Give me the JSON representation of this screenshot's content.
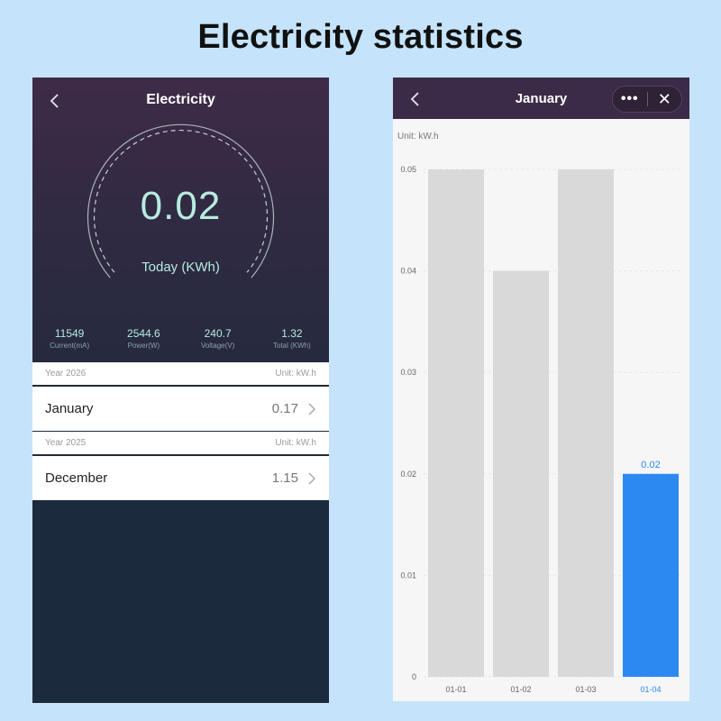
{
  "page_title": "Electricity statistics",
  "left": {
    "nav_title": "Electricity",
    "gauge_value": "0.02",
    "gauge_label": "Today (KWh)",
    "stats": [
      {
        "value": "11549",
        "label": "Current(mA)"
      },
      {
        "value": "2544.6",
        "label": "Power(W)"
      },
      {
        "value": "240.7",
        "label": "Voltage(V)"
      },
      {
        "value": "1.32",
        "label": "Total (KWh)"
      }
    ],
    "groups": [
      {
        "year": "Year 2026",
        "unit": "Unit: kW.h",
        "month": "January",
        "value": "0.17"
      },
      {
        "year": "Year 2025",
        "unit": "Unit: kW.h",
        "month": "December",
        "value": "1.15"
      }
    ]
  },
  "right": {
    "nav_title": "January",
    "unit": "Unit: kW.h"
  },
  "colors": {
    "bar_default": "#d9d9d9",
    "bar_selected": "#2d89f2",
    "gauge_text": "#b6ecdf"
  },
  "chart_data": {
    "type": "bar",
    "categories": [
      "01-01",
      "01-02",
      "01-03",
      "01-04"
    ],
    "values": [
      0.05,
      0.04,
      0.05,
      0.02
    ],
    "ylim": [
      0,
      0.05
    ],
    "yticks": [
      "0",
      "0.01",
      "0.02",
      "0.03",
      "0.04",
      "0.05"
    ],
    "selected_index": 3,
    "selected_label": "0.02",
    "grid": true
  }
}
